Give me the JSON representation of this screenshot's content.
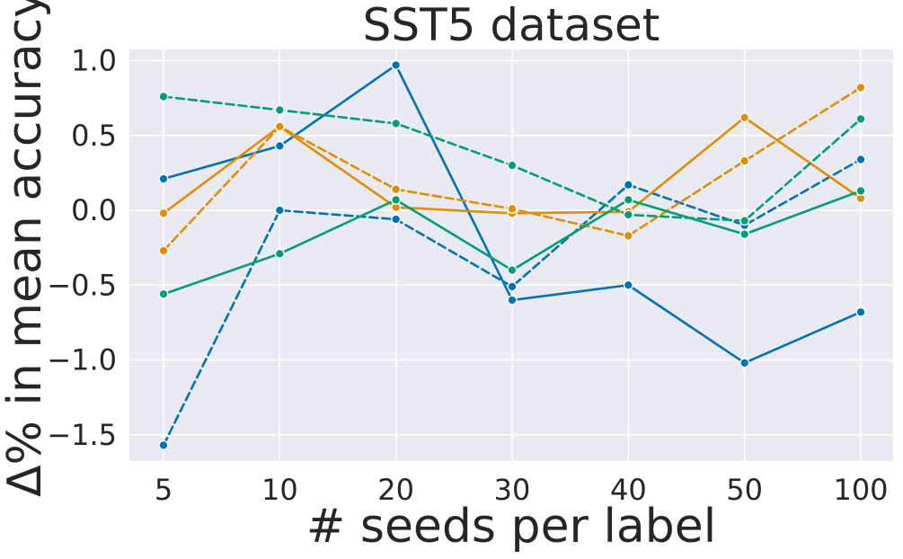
{
  "chart_data": {
    "type": "line",
    "title": "SST5 dataset",
    "xlabel": "# seeds per label",
    "ylabel": "Δ% in mean accuracy",
    "categories": [
      "5",
      "10",
      "20",
      "30",
      "40",
      "50",
      "100"
    ],
    "ylim": [
      -1.7,
      1.1
    ],
    "yticks": [
      1.0,
      0.5,
      0.0,
      -0.5,
      -1.0,
      -1.5
    ],
    "ytick_labels": [
      "1.0",
      "0.5",
      "0.0",
      "−0.5",
      "−1.0",
      "−1.5"
    ],
    "grid": true,
    "legend": "none",
    "series": [
      {
        "name": "blue-solid",
        "color": "#0173b2",
        "style": "solid",
        "values": [
          0.21,
          0.43,
          0.97,
          -0.6,
          -0.5,
          -1.02,
          -0.68
        ]
      },
      {
        "name": "blue-dashed",
        "color": "#0173b2",
        "style": "dashed",
        "values": [
          -1.57,
          0.0,
          -0.06,
          -0.51,
          0.17,
          -0.1,
          0.34
        ]
      },
      {
        "name": "orange-solid",
        "color": "#de8f05",
        "style": "solid",
        "values": [
          -0.02,
          0.56,
          0.02,
          -0.02,
          -0.01,
          0.62,
          0.08
        ]
      },
      {
        "name": "orange-dashed",
        "color": "#de8f05",
        "style": "dashed",
        "values": [
          -0.27,
          0.56,
          0.14,
          0.01,
          -0.17,
          0.33,
          0.82
        ]
      },
      {
        "name": "green-solid",
        "color": "#029e73",
        "style": "solid",
        "values": [
          -0.56,
          -0.29,
          0.07,
          -0.4,
          0.07,
          -0.16,
          0.13
        ]
      },
      {
        "name": "green-dashed",
        "color": "#029e73",
        "style": "dashed",
        "values": [
          0.76,
          0.67,
          0.58,
          0.3,
          -0.03,
          -0.07,
          0.61
        ]
      }
    ]
  }
}
